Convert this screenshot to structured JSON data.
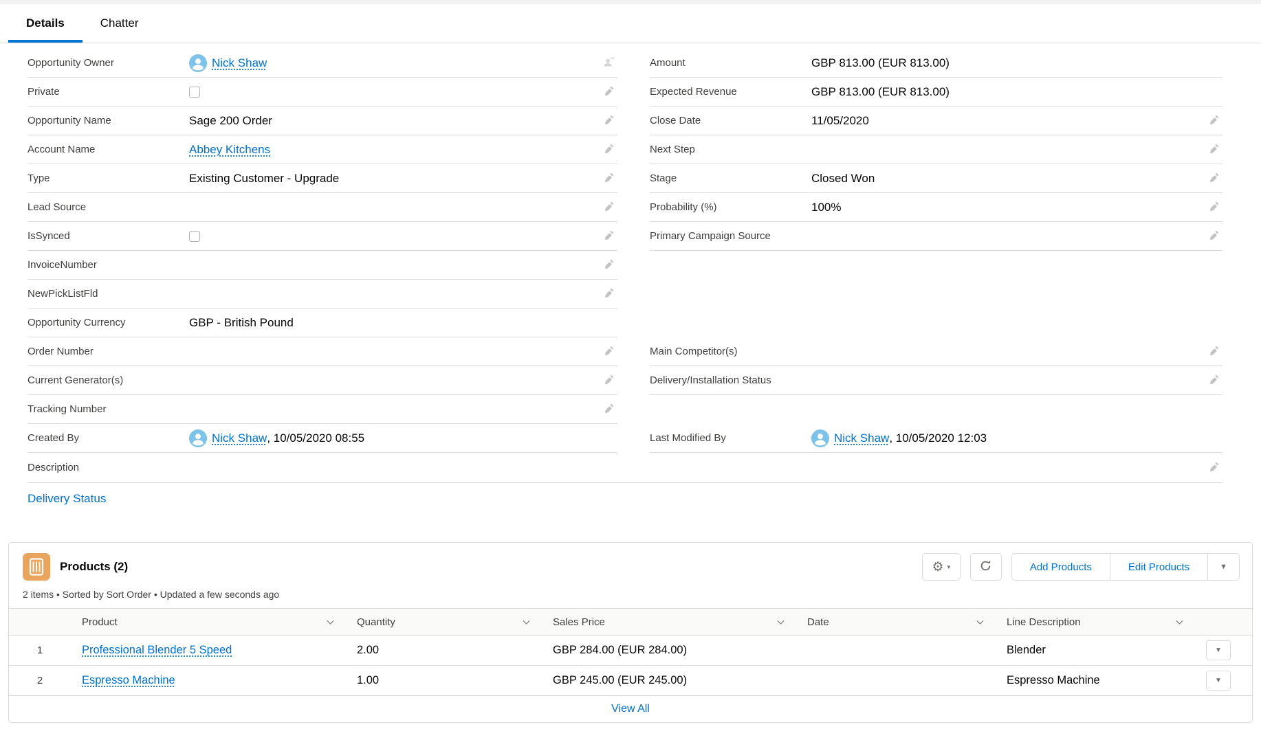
{
  "tabs": [
    {
      "label": "Details",
      "active": true
    },
    {
      "label": "Chatter",
      "active": false
    }
  ],
  "record": {
    "left_fields": [
      {
        "label": "Opportunity Owner",
        "type": "user",
        "user": "Nick Shaw",
        "suffix": "",
        "icon": "change-owner-icon"
      },
      {
        "label": "Private",
        "type": "checkbox",
        "checked": false,
        "icon": "pencil-icon"
      },
      {
        "label": "Opportunity Name",
        "type": "text",
        "value": "Sage 200 Order",
        "icon": "pencil-icon"
      },
      {
        "label": "Account Name",
        "type": "link",
        "value": "Abbey Kitchens",
        "icon": "pencil-icon"
      },
      {
        "label": "Type",
        "type": "text",
        "value": "Existing Customer - Upgrade",
        "icon": "pencil-icon"
      },
      {
        "label": "Lead Source",
        "type": "empty",
        "icon": "pencil-icon"
      },
      {
        "label": "IsSynced",
        "type": "checkbox",
        "checked": false,
        "icon": "pencil-icon"
      },
      {
        "label": "InvoiceNumber",
        "type": "empty",
        "icon": "pencil-icon"
      },
      {
        "label": "NewPickListFld",
        "type": "empty",
        "icon": "pencil-icon"
      },
      {
        "label": "Opportunity Currency",
        "type": "text",
        "value": "GBP - British Pound",
        "icon": "none"
      },
      {
        "label": "Order Number",
        "type": "empty",
        "icon": "pencil-icon"
      },
      {
        "label": "Current Generator(s)",
        "type": "empty",
        "icon": "pencil-icon"
      },
      {
        "label": "Tracking Number",
        "type": "empty",
        "icon": "pencil-icon"
      },
      {
        "label": "Created By",
        "type": "user",
        "user": "Nick Shaw",
        "suffix": ", 10/05/2020 08:55",
        "icon": "none"
      }
    ],
    "right_fields": [
      {
        "label": "Amount",
        "type": "text",
        "value": "GBP 813.00 (EUR 813.00)",
        "icon": "none"
      },
      {
        "label": "Expected Revenue",
        "type": "text",
        "value": "GBP 813.00 (EUR 813.00)",
        "icon": "none"
      },
      {
        "label": "Close Date",
        "type": "text",
        "value": "11/05/2020",
        "icon": "pencil-icon"
      },
      {
        "label": "Next Step",
        "type": "empty",
        "icon": "pencil-icon"
      },
      {
        "label": "Stage",
        "type": "text",
        "value": "Closed Won",
        "icon": "pencil-icon"
      },
      {
        "label": "Probability (%)",
        "type": "text",
        "value": "100%",
        "icon": "pencil-icon"
      },
      {
        "label": "Primary Campaign Source",
        "type": "empty",
        "icon": "pencil-icon"
      },
      {
        "type": "gap",
        "rows": 3
      },
      {
        "label": "Main Competitor(s)",
        "type": "empty",
        "icon": "pencil-icon"
      },
      {
        "label": "Delivery/Installation Status",
        "type": "empty",
        "icon": "pencil-icon"
      },
      {
        "type": "gap",
        "rows": 1
      },
      {
        "label": "Last Modified By",
        "type": "user",
        "user": "Nick Shaw",
        "suffix": ", 10/05/2020 12:03",
        "icon": "none"
      }
    ],
    "description_label": "Description",
    "delivery_status_link": "Delivery Status"
  },
  "products": {
    "icon": "products-icon",
    "title": "Products (2)",
    "summary": "2 items • Sorted by Sort Order • Updated a few seconds ago",
    "header_buttons": {
      "settings_icon": "gear-icon",
      "refresh_icon": "refresh-icon",
      "add_label": "Add Products",
      "edit_label": "Edit Products",
      "more_icon": "caret-down-icon"
    },
    "table": {
      "columns": [
        "Product",
        "Quantity",
        "Sales Price",
        "Date",
        "Line Description"
      ],
      "sort_icon": "chevron-down-icon",
      "rows": [
        {
          "num": "1",
          "product": "Professional Blender 5 Speed",
          "quantity": "2.00",
          "sales_price": "GBP 284.00 (EUR 284.00)",
          "date": "",
          "line_description": "Blender"
        },
        {
          "num": "2",
          "product": "Espresso Machine",
          "quantity": "1.00",
          "sales_price": "GBP 245.00 (EUR 245.00)",
          "date": "",
          "line_description": "Espresso Machine"
        }
      ]
    },
    "view_all_label": "View All"
  },
  "colors": {
    "link": "#0070d2",
    "tab_active_underline": "#0176d3",
    "products_icon_bg": "#e9a55e",
    "avatar_bg": "#7dc2e8",
    "border": "#dddbda",
    "table_header_bg": "#fafaf9"
  }
}
